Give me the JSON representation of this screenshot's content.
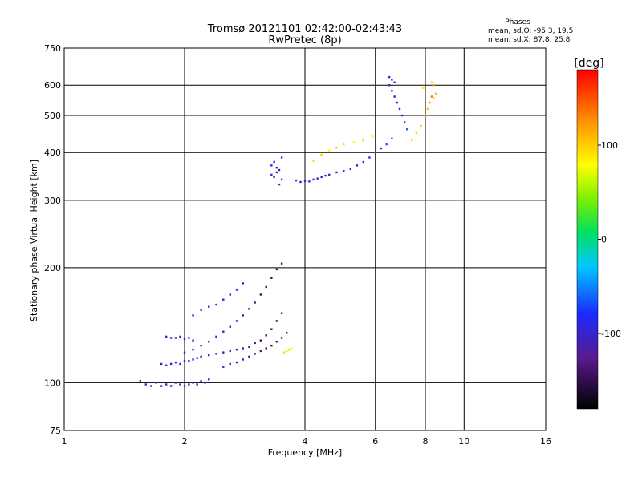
{
  "chart_data": {
    "type": "scatter",
    "title": "Tromsø 20121101 02:42:00-02:43:43",
    "subtitle": "RwPretec (8p)",
    "xlabel": "Frequency [MHz]",
    "ylabel": "Stationary phase Virtual Height [km]",
    "x_scale": "log",
    "y_scale": "log",
    "xlim": [
      1,
      16
    ],
    "ylim": [
      75,
      750
    ],
    "grid": true,
    "x_ticks": [
      {
        "value": 1,
        "label": "1"
      },
      {
        "value": 2,
        "label": "2"
      },
      {
        "value": 4,
        "label": "4"
      },
      {
        "value": 6,
        "label": "6"
      },
      {
        "value": 8,
        "label": "8"
      },
      {
        "value": 10,
        "label": "10"
      },
      {
        "value": 16,
        "label": "16"
      }
    ],
    "y_ticks": [
      {
        "value": 75,
        "label": "75"
      },
      {
        "value": 100,
        "label": "100"
      },
      {
        "value": 200,
        "label": "200"
      },
      {
        "value": 300,
        "label": "300"
      },
      {
        "value": 400,
        "label": "400"
      },
      {
        "value": 500,
        "label": "500"
      },
      {
        "value": 600,
        "label": "600"
      },
      {
        "value": 750,
        "label": "750"
      }
    ],
    "legend": {
      "title": "Phases",
      "line1": "mean, sd,O: -95.3, 19.5",
      "line2": "mean, sd,X:  87.8, 25.8"
    },
    "colorbar": {
      "label": "[deg]",
      "range": [
        -180,
        180
      ],
      "ticks": [
        {
          "value": 100,
          "label": "100"
        },
        {
          "value": 0,
          "label": "0"
        },
        {
          "value": -100,
          "label": "-100"
        }
      ]
    },
    "series": [
      {
        "point_format": [
          "frequency_MHz",
          "height_km",
          "phase_deg"
        ],
        "points": [
          [
            1.55,
            101,
            -100
          ],
          [
            1.6,
            99,
            -105
          ],
          [
            1.65,
            98,
            -110
          ],
          [
            1.7,
            100,
            -95
          ],
          [
            1.75,
            98,
            -100
          ],
          [
            1.8,
            99,
            -105
          ],
          [
            1.85,
            98,
            -90
          ],
          [
            1.9,
            100,
            -110
          ],
          [
            1.95,
            99,
            -100
          ],
          [
            2.0,
            98,
            -95
          ],
          [
            2.05,
            99,
            -105
          ],
          [
            2.1,
            100,
            -100
          ],
          [
            2.15,
            99,
            -90
          ],
          [
            2.2,
            101,
            -110
          ],
          [
            2.25,
            100,
            -100
          ],
          [
            2.3,
            102,
            -95
          ],
          [
            1.75,
            112,
            -100
          ],
          [
            1.8,
            111,
            -95
          ],
          [
            1.85,
            112,
            -105
          ],
          [
            1.9,
            113,
            -100
          ],
          [
            1.95,
            112,
            -90
          ],
          [
            2.0,
            114,
            -105
          ],
          [
            2.05,
            114,
            -100
          ],
          [
            2.1,
            115,
            -110
          ],
          [
            2.15,
            116,
            -95
          ],
          [
            2.2,
            117,
            -100
          ],
          [
            2.3,
            118,
            -105
          ],
          [
            2.4,
            119,
            -100
          ],
          [
            2.5,
            120,
            -110
          ],
          [
            2.6,
            121,
            -95
          ],
          [
            2.7,
            122,
            -100
          ],
          [
            2.8,
            123,
            -120
          ],
          [
            2.9,
            124,
            -125
          ],
          [
            3.0,
            127,
            -130
          ],
          [
            3.1,
            129,
            -140
          ],
          [
            3.2,
            133,
            -145
          ],
          [
            3.3,
            138,
            -150
          ],
          [
            3.4,
            145,
            -140
          ],
          [
            3.5,
            152,
            -145
          ],
          [
            1.8,
            132,
            -100
          ],
          [
            1.85,
            131,
            -95
          ],
          [
            1.9,
            131,
            -105
          ],
          [
            1.95,
            132,
            -100
          ],
          [
            2.0,
            130,
            -90
          ],
          [
            2.05,
            131,
            -100
          ],
          [
            2.1,
            129,
            -105
          ],
          [
            2.0,
            120,
            -100
          ],
          [
            2.1,
            122,
            -95
          ],
          [
            2.2,
            125,
            -100
          ],
          [
            2.3,
            128,
            -105
          ],
          [
            2.4,
            132,
            -100
          ],
          [
            2.5,
            136,
            -110
          ],
          [
            2.6,
            140,
            -100
          ],
          [
            2.7,
            145,
            -95
          ],
          [
            2.8,
            150,
            -120
          ],
          [
            2.9,
            156,
            -125
          ],
          [
            3.0,
            162,
            -130
          ],
          [
            3.1,
            170,
            -140
          ],
          [
            3.2,
            178,
            -145
          ],
          [
            3.3,
            188,
            -150
          ],
          [
            3.4,
            198,
            -140
          ],
          [
            3.5,
            205,
            -145
          ],
          [
            2.1,
            150,
            -80
          ],
          [
            2.2,
            155,
            -95
          ],
          [
            2.3,
            158,
            -100
          ],
          [
            2.4,
            160,
            -85
          ],
          [
            2.5,
            165,
            -100
          ],
          [
            2.6,
            170,
            -90
          ],
          [
            2.7,
            175,
            -80
          ],
          [
            2.8,
            182,
            -95
          ],
          [
            2.5,
            110,
            -100
          ],
          [
            2.6,
            112,
            -95
          ],
          [
            2.7,
            113,
            -105
          ],
          [
            2.8,
            115,
            -100
          ],
          [
            2.9,
            117,
            -120
          ],
          [
            3.0,
            119,
            -125
          ],
          [
            3.1,
            121,
            -130
          ],
          [
            3.2,
            123,
            -140
          ],
          [
            3.3,
            125,
            -145
          ],
          [
            3.4,
            128,
            -150
          ],
          [
            3.5,
            131,
            -140
          ],
          [
            3.6,
            135,
            -145
          ],
          [
            3.55,
            120,
            60
          ],
          [
            3.6,
            121,
            70
          ],
          [
            3.65,
            122,
            65
          ],
          [
            3.7,
            123,
            75
          ],
          [
            3.3,
            350,
            -100
          ],
          [
            3.35,
            345,
            -110
          ],
          [
            3.4,
            355,
            -95
          ],
          [
            3.45,
            360,
            -100
          ],
          [
            3.3,
            370,
            -105
          ],
          [
            3.35,
            378,
            -90
          ],
          [
            3.4,
            365,
            -110
          ],
          [
            3.5,
            340,
            -100
          ],
          [
            3.5,
            388,
            -95
          ],
          [
            3.45,
            330,
            -120
          ],
          [
            3.8,
            338,
            -100
          ],
          [
            3.9,
            335,
            -105
          ],
          [
            4.0,
            337,
            -110
          ],
          [
            4.1,
            336,
            -100
          ],
          [
            4.2,
            340,
            -95
          ],
          [
            4.3,
            342,
            -105
          ],
          [
            4.4,
            345,
            -100
          ],
          [
            4.5,
            348,
            -110
          ],
          [
            4.6,
            350,
            -100
          ],
          [
            4.8,
            355,
            -90
          ],
          [
            5.0,
            358,
            -100
          ],
          [
            5.2,
            362,
            -85
          ],
          [
            5.4,
            370,
            -100
          ],
          [
            5.6,
            378,
            -80
          ],
          [
            5.8,
            388,
            -90
          ],
          [
            6.0,
            400,
            -70
          ],
          [
            6.2,
            410,
            -80
          ],
          [
            6.4,
            420,
            -60
          ],
          [
            6.6,
            435,
            -70
          ],
          [
            4.2,
            380,
            90
          ],
          [
            4.4,
            395,
            100
          ],
          [
            4.6,
            405,
            80
          ],
          [
            4.8,
            412,
            110
          ],
          [
            5.0,
            420,
            95
          ],
          [
            5.3,
            425,
            85
          ],
          [
            5.6,
            430,
            100
          ],
          [
            5.9,
            440,
            90
          ],
          [
            6.5,
            600,
            -100
          ],
          [
            6.6,
            580,
            -110
          ],
          [
            6.7,
            560,
            -95
          ],
          [
            6.8,
            540,
            -100
          ],
          [
            6.9,
            520,
            -80
          ],
          [
            7.0,
            500,
            -90
          ],
          [
            7.1,
            480,
            -70
          ],
          [
            7.2,
            460,
            -60
          ],
          [
            6.5,
            630,
            -100
          ],
          [
            6.6,
            620,
            -110
          ],
          [
            6.7,
            610,
            -95
          ],
          [
            7.4,
            430,
            90
          ],
          [
            7.6,
            450,
            100
          ],
          [
            7.8,
            470,
            110
          ],
          [
            8.0,
            500,
            120
          ],
          [
            8.1,
            520,
            100
          ],
          [
            8.2,
            540,
            130
          ],
          [
            8.3,
            560,
            140
          ],
          [
            8.4,
            555,
            95
          ],
          [
            8.5,
            570,
            110
          ],
          [
            8.4,
            600,
            120
          ],
          [
            8.3,
            610,
            100
          ],
          [
            7.9,
            590,
            90
          ]
        ]
      }
    ]
  }
}
